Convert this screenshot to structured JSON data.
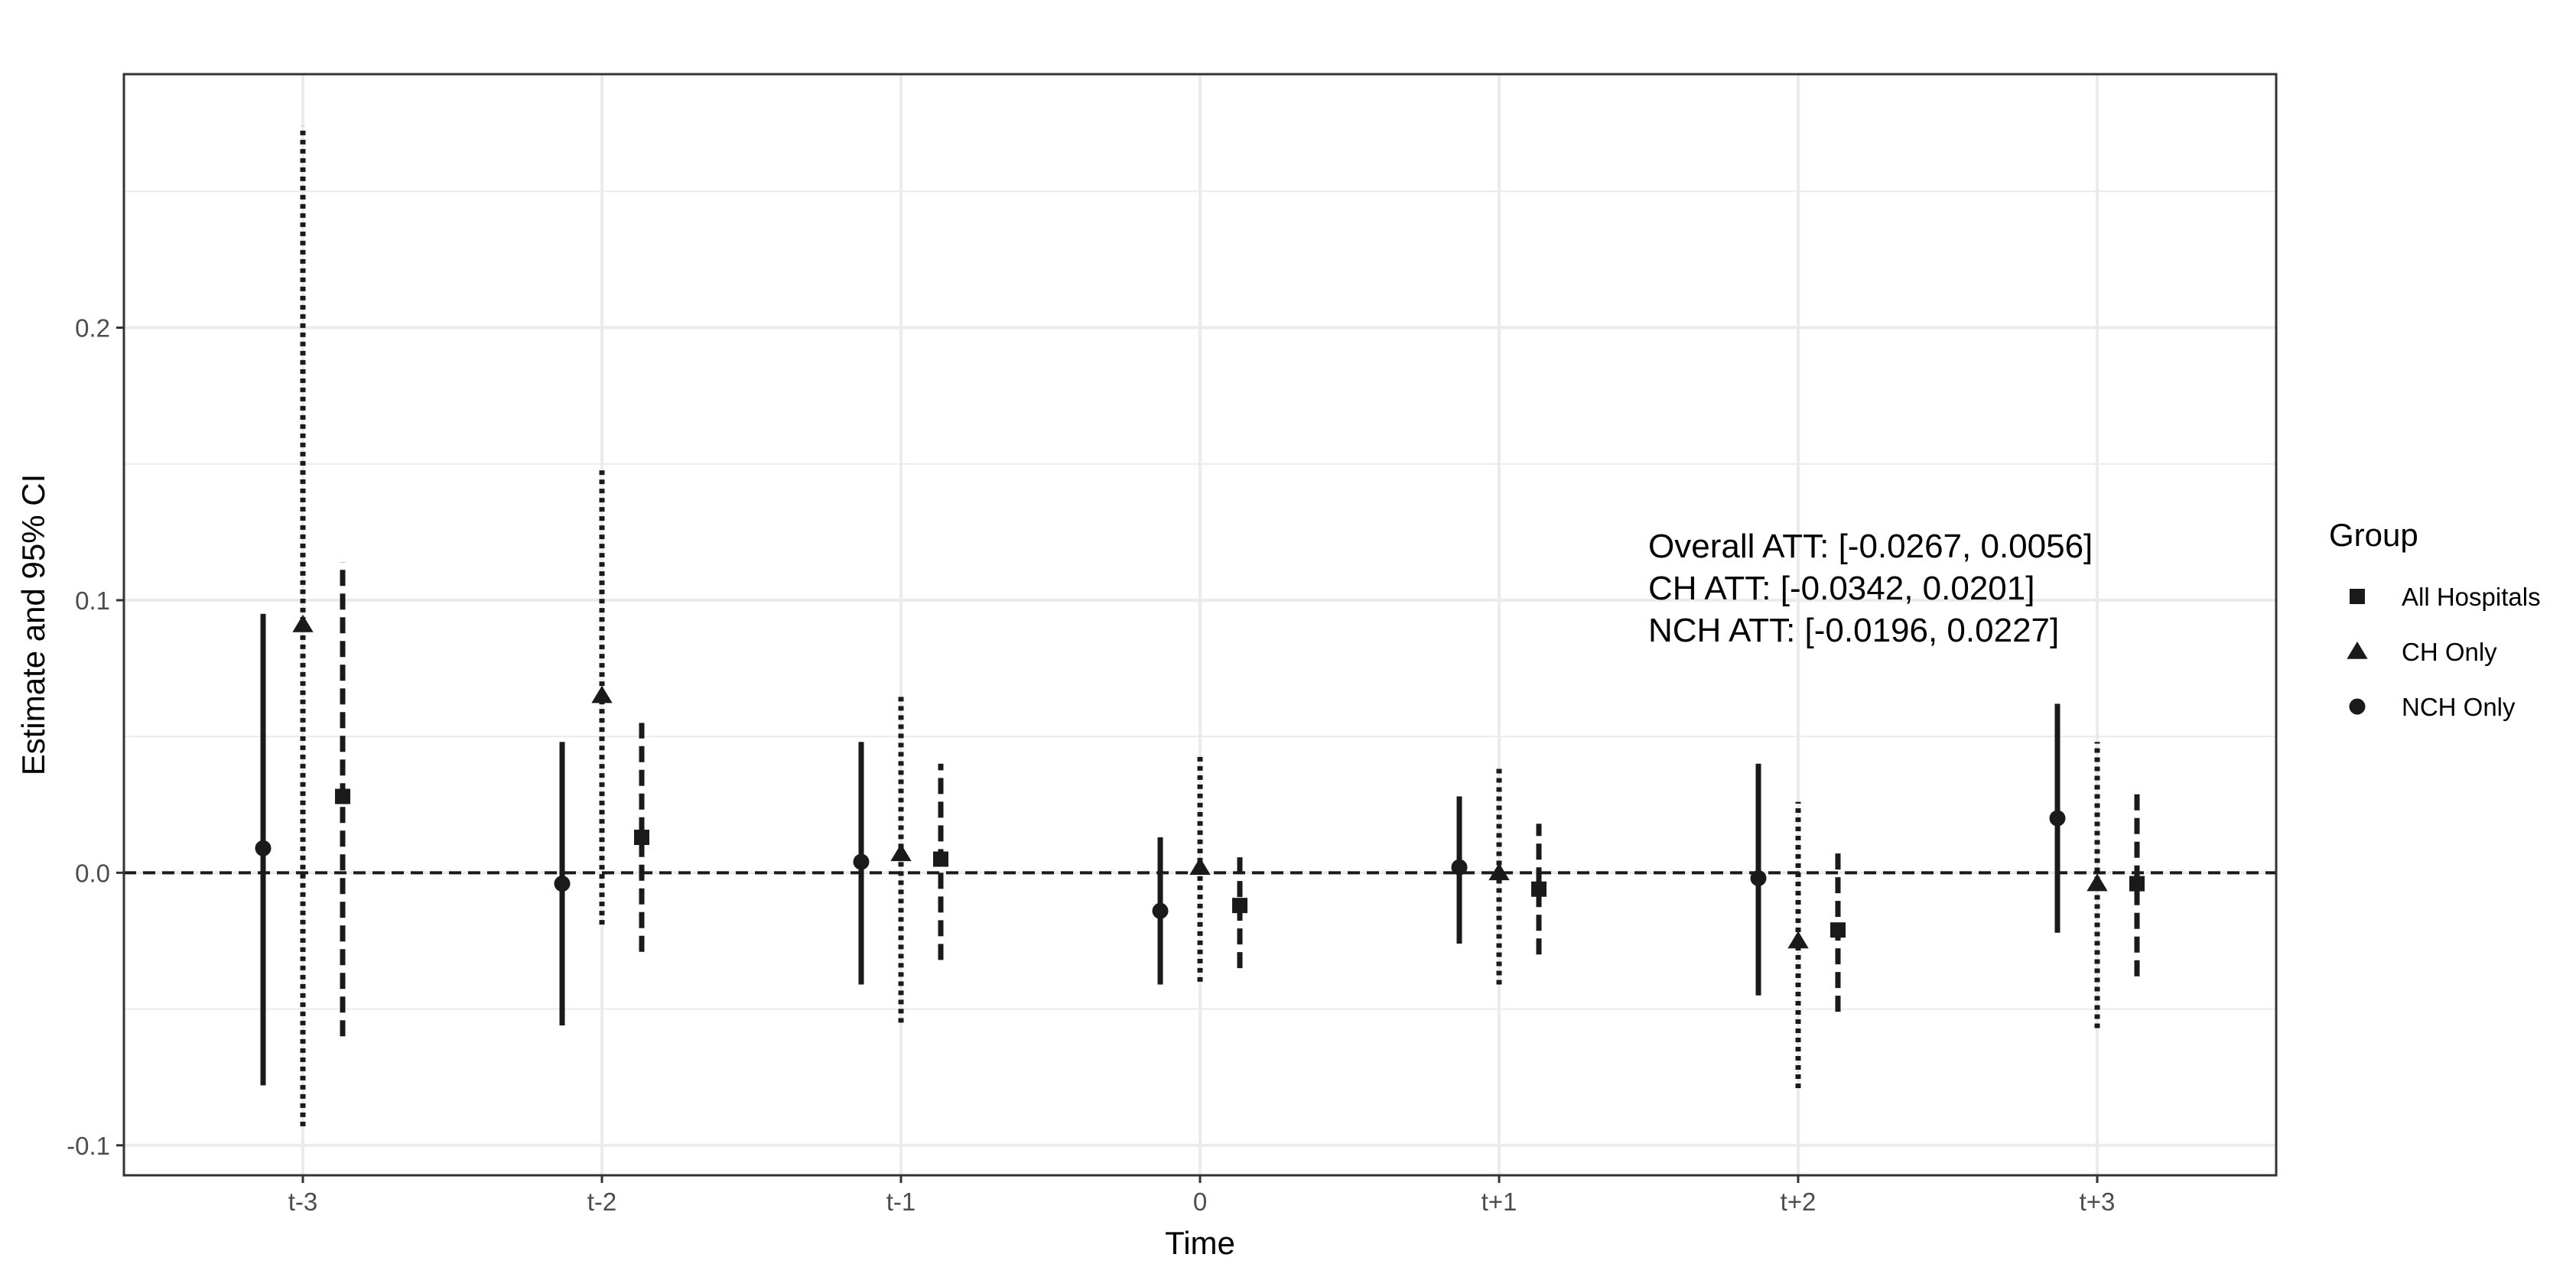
{
  "chart_data": {
    "type": "scatter",
    "subtype": "point-range (estimate with 95% CI)",
    "title": "",
    "xlabel": "Time",
    "ylabel": "Estimate and 95% CI",
    "categories": [
      "t-3",
      "t-2",
      "t-1",
      "0",
      "t+1",
      "t+2",
      "t+3"
    ],
    "y_ticks": [
      {
        "value": -0.1,
        "label": "-0.1"
      },
      {
        "value": 0.0,
        "label": "0.0"
      },
      {
        "value": 0.1,
        "label": "0.1"
      },
      {
        "value": 0.2,
        "label": "0.2"
      }
    ],
    "ylim": [
      -0.111,
      0.293
    ],
    "grid": true,
    "reference_line": {
      "y": 0,
      "style": "dashed"
    },
    "legend": {
      "title": "Group",
      "position": "right"
    },
    "series": [
      {
        "name": "NCH Only",
        "shape": "circle",
        "line_style": "solid",
        "estimates": [
          0.009,
          -0.004,
          0.004,
          -0.014,
          0.002,
          -0.002,
          0.02
        ],
        "ci_low": [
          -0.078,
          -0.056,
          -0.041,
          -0.041,
          -0.026,
          -0.045,
          -0.022
        ],
        "ci_high": [
          0.095,
          0.048,
          0.048,
          0.013,
          0.028,
          0.04,
          0.062
        ]
      },
      {
        "name": "CH Only",
        "shape": "triangle",
        "line_style": "dotted",
        "estimates": [
          0.091,
          0.065,
          0.007,
          0.002,
          0.0,
          -0.025,
          -0.004
        ],
        "ci_low": [
          -0.093,
          -0.019,
          -0.055,
          -0.04,
          -0.041,
          -0.079,
          -0.057
        ],
        "ci_high": [
          0.274,
          0.148,
          0.065,
          0.043,
          0.039,
          0.026,
          0.048
        ]
      },
      {
        "name": "All Hospitals",
        "shape": "square",
        "line_style": "dashed",
        "estimates": [
          0.028,
          0.013,
          0.005,
          -0.012,
          -0.006,
          -0.021,
          -0.004
        ],
        "ci_low": [
          -0.06,
          -0.029,
          -0.032,
          -0.035,
          -0.03,
          -0.051,
          -0.038
        ],
        "ci_high": [
          0.114,
          0.055,
          0.04,
          0.008,
          0.018,
          0.009,
          0.029
        ]
      }
    ],
    "legend_order": [
      "All Hospitals",
      "CH Only",
      "NCH Only"
    ],
    "annotations": [
      "Overall ATT: [-0.0267, 0.0056]",
      "CH ATT: [-0.0342, 0.0201]",
      "NCH ATT: [-0.0196, 0.0227]"
    ],
    "colors": {
      "marks": "#1a1a1a",
      "grid": "#ebebeb",
      "panel_border": "#333333",
      "axis_text": "#4d4d4d"
    }
  }
}
